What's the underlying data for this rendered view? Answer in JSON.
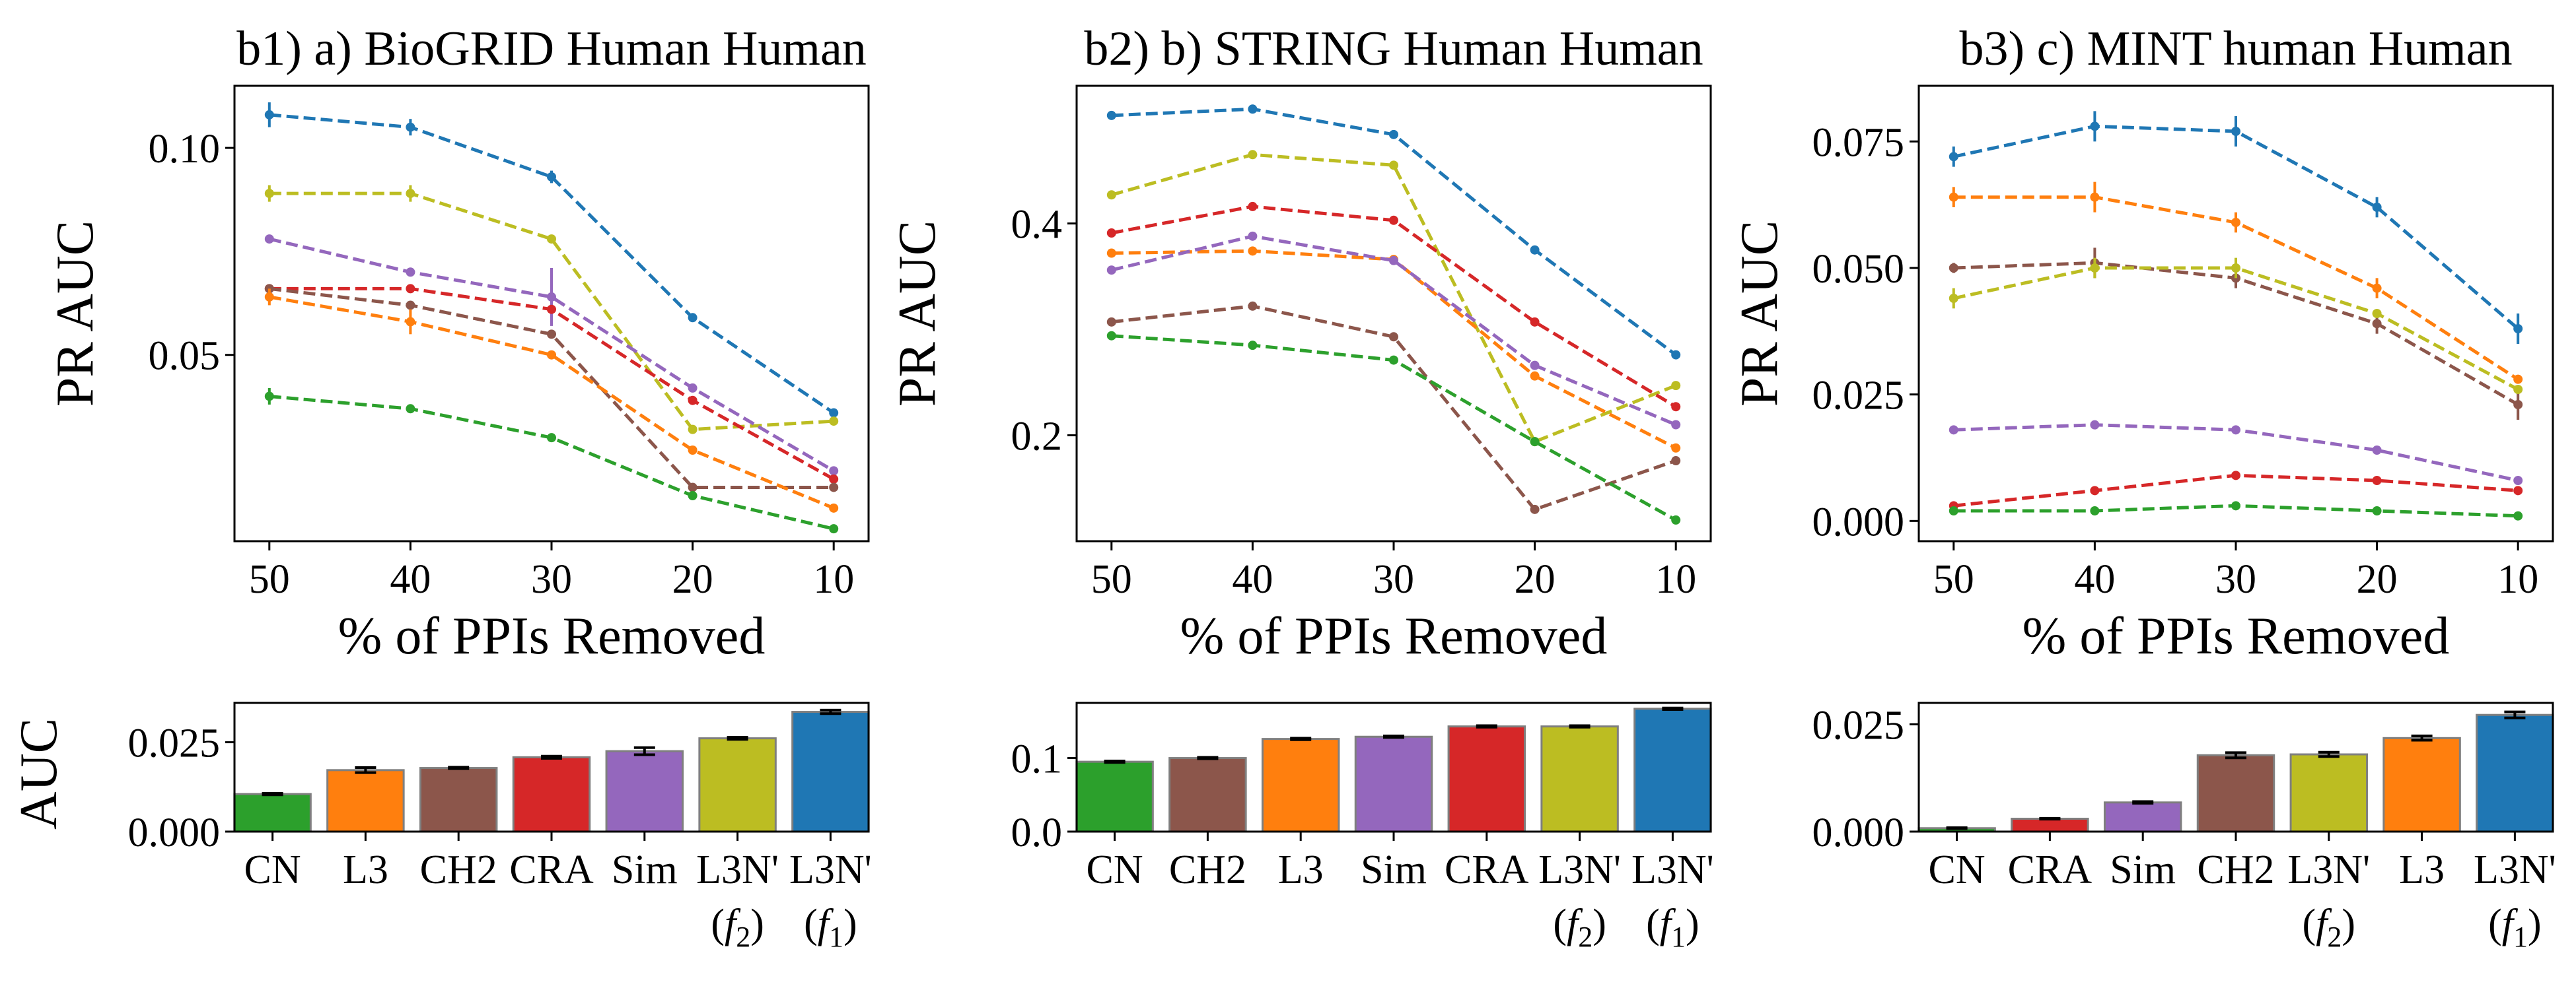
{
  "chart_data": [
    {
      "id": "b1",
      "type": "line",
      "title": "b1) a) BioGRID Human Human",
      "xlabel": "% of PPIs Removed",
      "ylabel": "PR AUC",
      "x": [
        "50",
        "40",
        "30",
        "20",
        "10"
      ],
      "ylim": [
        0.005,
        0.115
      ],
      "yticks": [
        0.05,
        0.1
      ],
      "ytick_labels": [
        "0.05",
        "0.10"
      ],
      "series": [
        {
          "key": "L3N_f1",
          "color": "#1f77b4",
          "dashed": true,
          "values": [
            0.108,
            0.105,
            0.093,
            0.059,
            0.036
          ],
          "err": [
            0.003,
            0.002,
            0.0015,
            0.0,
            0.0
          ]
        },
        {
          "key": "L3N_f2",
          "color": "#bcbd22",
          "dashed": true,
          "values": [
            0.089,
            0.089,
            0.078,
            0.032,
            0.034
          ],
          "err": [
            0.002,
            0.002,
            0.0,
            0.0,
            0.0
          ]
        },
        {
          "key": "Sim",
          "color": "#9467bd",
          "dashed": true,
          "values": [
            0.078,
            0.07,
            0.064,
            0.042,
            0.022
          ],
          "err": [
            0.0,
            0.0,
            0.007,
            0.0,
            0.0
          ]
        },
        {
          "key": "CRA",
          "color": "#d62728",
          "dashed": true,
          "values": [
            0.066,
            0.066,
            0.061,
            0.039,
            0.02
          ],
          "err": [
            0.0,
            0.0,
            0.0,
            0.0,
            0.0
          ]
        },
        {
          "key": "CH2",
          "color": "#8c564b",
          "dashed": true,
          "values": [
            0.066,
            0.062,
            0.055,
            0.018,
            0.018
          ],
          "err": [
            0.0,
            0.0,
            0.0,
            0.0,
            0.0
          ]
        },
        {
          "key": "L3",
          "color": "#ff7f0e",
          "dashed": true,
          "values": [
            0.064,
            0.058,
            0.05,
            0.027,
            0.013
          ],
          "err": [
            0.002,
            0.003,
            0.0,
            0.0,
            0.0
          ]
        },
        {
          "key": "CN",
          "color": "#2ca02c",
          "dashed": true,
          "values": [
            0.04,
            0.037,
            0.03,
            0.016,
            0.008
          ],
          "err": [
            0.002,
            0.0,
            0.0,
            0.0,
            0.0
          ]
        }
      ]
    },
    {
      "id": "b2",
      "type": "line",
      "title": "b2) b) STRING Human Human",
      "xlabel": "% of PPIs Removed",
      "ylabel": "PR AUC",
      "x": [
        "50",
        "40",
        "30",
        "20",
        "10"
      ],
      "ylim": [
        0.1,
        0.53
      ],
      "yticks": [
        0.2,
        0.4
      ],
      "ytick_labels": [
        "0.2",
        "0.4"
      ],
      "series": [
        {
          "key": "L3N_f1",
          "color": "#1f77b4",
          "dashed": true,
          "values": [
            0.502,
            0.508,
            0.484,
            0.375,
            0.276
          ],
          "err": [
            0,
            0,
            0,
            0,
            0
          ]
        },
        {
          "key": "L3N_f2",
          "color": "#bcbd22",
          "dashed": true,
          "values": [
            0.427,
            0.465,
            0.455,
            0.194,
            0.247
          ],
          "err": [
            0,
            0,
            0,
            0,
            0
          ]
        },
        {
          "key": "CRA",
          "color": "#d62728",
          "dashed": true,
          "values": [
            0.391,
            0.416,
            0.403,
            0.307,
            0.227
          ],
          "err": [
            0,
            0,
            0,
            0,
            0
          ]
        },
        {
          "key": "L3",
          "color": "#ff7f0e",
          "dashed": true,
          "values": [
            0.372,
            0.374,
            0.366,
            0.256,
            0.188
          ],
          "err": [
            0,
            0,
            0,
            0,
            0
          ]
        },
        {
          "key": "Sim",
          "color": "#9467bd",
          "dashed": true,
          "values": [
            0.356,
            0.388,
            0.365,
            0.266,
            0.21
          ],
          "err": [
            0,
            0,
            0,
            0,
            0
          ]
        },
        {
          "key": "CH2",
          "color": "#8c564b",
          "dashed": true,
          "values": [
            0.307,
            0.322,
            0.293,
            0.13,
            0.176
          ],
          "err": [
            0,
            0,
            0,
            0,
            0
          ]
        },
        {
          "key": "CN",
          "color": "#2ca02c",
          "dashed": true,
          "values": [
            0.294,
            0.285,
            0.271,
            0.194,
            0.12
          ],
          "err": [
            0,
            0,
            0,
            0,
            0
          ]
        }
      ]
    },
    {
      "id": "b3",
      "type": "line",
      "title": "b3) c) MINT human Human",
      "xlabel": "% of PPIs Removed",
      "ylabel": "PR AUC",
      "x": [
        "50",
        "40",
        "30",
        "20",
        "10"
      ],
      "ylim": [
        -0.004,
        0.086
      ],
      "yticks": [
        0.0,
        0.025,
        0.05,
        0.075
      ],
      "ytick_labels": [
        "0.000",
        "0.025",
        "0.050",
        "0.075"
      ],
      "series": [
        {
          "key": "L3N_f1",
          "color": "#1f77b4",
          "dashed": true,
          "values": [
            0.072,
            0.078,
            0.077,
            0.062,
            0.038
          ],
          "err": [
            0.002,
            0.003,
            0.003,
            0.002,
            0.003
          ]
        },
        {
          "key": "L3",
          "color": "#ff7f0e",
          "dashed": true,
          "values": [
            0.064,
            0.064,
            0.059,
            0.046,
            0.028
          ],
          "err": [
            0.002,
            0.003,
            0.002,
            0.002,
            0.0
          ]
        },
        {
          "key": "CH2",
          "color": "#8c564b",
          "dashed": true,
          "values": [
            0.05,
            0.051,
            0.048,
            0.039,
            0.023
          ],
          "err": [
            0.001,
            0.003,
            0.002,
            0.002,
            0.003
          ]
        },
        {
          "key": "L3N_f2",
          "color": "#bcbd22",
          "dashed": true,
          "values": [
            0.044,
            0.05,
            0.05,
            0.041,
            0.026
          ],
          "err": [
            0.002,
            0.002,
            0.002,
            0.0,
            0.0
          ]
        },
        {
          "key": "Sim",
          "color": "#9467bd",
          "dashed": true,
          "values": [
            0.018,
            0.019,
            0.018,
            0.014,
            0.008
          ],
          "err": [
            0,
            0,
            0,
            0,
            0
          ]
        },
        {
          "key": "CRA",
          "color": "#d62728",
          "dashed": true,
          "values": [
            0.003,
            0.006,
            0.009,
            0.008,
            0.006
          ],
          "err": [
            0,
            0,
            0,
            0,
            0
          ]
        },
        {
          "key": "CN",
          "color": "#2ca02c",
          "dashed": true,
          "values": [
            0.002,
            0.002,
            0.003,
            0.002,
            0.001
          ],
          "err": [
            0,
            0,
            0,
            0,
            0
          ]
        }
      ]
    },
    {
      "id": "b1_bar",
      "type": "bar",
      "ylabel": "AUC",
      "ylim": [
        0.0,
        0.036
      ],
      "yticks": [
        0.0,
        0.025
      ],
      "ytick_labels": [
        "0.000",
        "0.025"
      ],
      "categories": [
        "CN",
        "L3",
        "CH2",
        "CRA",
        "Sim",
        "L3N'",
        "L3N'"
      ],
      "subscripts": [
        "",
        "",
        "",
        "",
        "",
        "f2",
        "f1"
      ],
      "colors": [
        "#2ca02c",
        "#ff7f0e",
        "#8c564b",
        "#d62728",
        "#9467bd",
        "#bcbd22",
        "#1f77b4"
      ],
      "values": [
        0.0105,
        0.0172,
        0.0178,
        0.0208,
        0.0225,
        0.0261,
        0.0335
      ],
      "err": [
        0.0002,
        0.0007,
        0.0002,
        0.0003,
        0.001,
        0.0003,
        0.0005
      ]
    },
    {
      "id": "b2_bar",
      "type": "bar",
      "ylabel": "",
      "ylim": [
        0.0,
        0.175
      ],
      "yticks": [
        0.0,
        0.1
      ],
      "ytick_labels": [
        "0.0",
        "0.1"
      ],
      "categories": [
        "CN",
        "CH2",
        "L3",
        "Sim",
        "CRA",
        "L3N'",
        "L3N'"
      ],
      "subscripts": [
        "",
        "",
        "",
        "",
        "",
        "f2",
        "f1"
      ],
      "colors": [
        "#2ca02c",
        "#8c564b",
        "#ff7f0e",
        "#9467bd",
        "#d62728",
        "#bcbd22",
        "#1f77b4"
      ],
      "values": [
        0.095,
        0.1,
        0.126,
        0.129,
        0.143,
        0.143,
        0.167
      ],
      "err": [
        0.001,
        0.001,
        0.001,
        0.001,
        0.001,
        0.001,
        0.001
      ]
    },
    {
      "id": "b3_bar",
      "type": "bar",
      "ylabel": "",
      "ylim": [
        0.0,
        0.03
      ],
      "yticks": [
        0.0,
        0.025
      ],
      "ytick_labels": [
        "0.000",
        "0.025"
      ],
      "categories": [
        "CN",
        "CRA",
        "Sim",
        "CH2",
        "L3N'",
        "L3",
        "L3N'"
      ],
      "subscripts": [
        "",
        "",
        "",
        "",
        "f2",
        "",
        "f1"
      ],
      "colors": [
        "#2ca02c",
        "#d62728",
        "#9467bd",
        "#8c564b",
        "#bcbd22",
        "#ff7f0e",
        "#1f77b4"
      ],
      "values": [
        0.0008,
        0.003,
        0.0068,
        0.0178,
        0.018,
        0.0218,
        0.0272
      ],
      "err": [
        0.0001,
        0.0001,
        0.0002,
        0.0006,
        0.0005,
        0.0005,
        0.0007
      ]
    }
  ]
}
